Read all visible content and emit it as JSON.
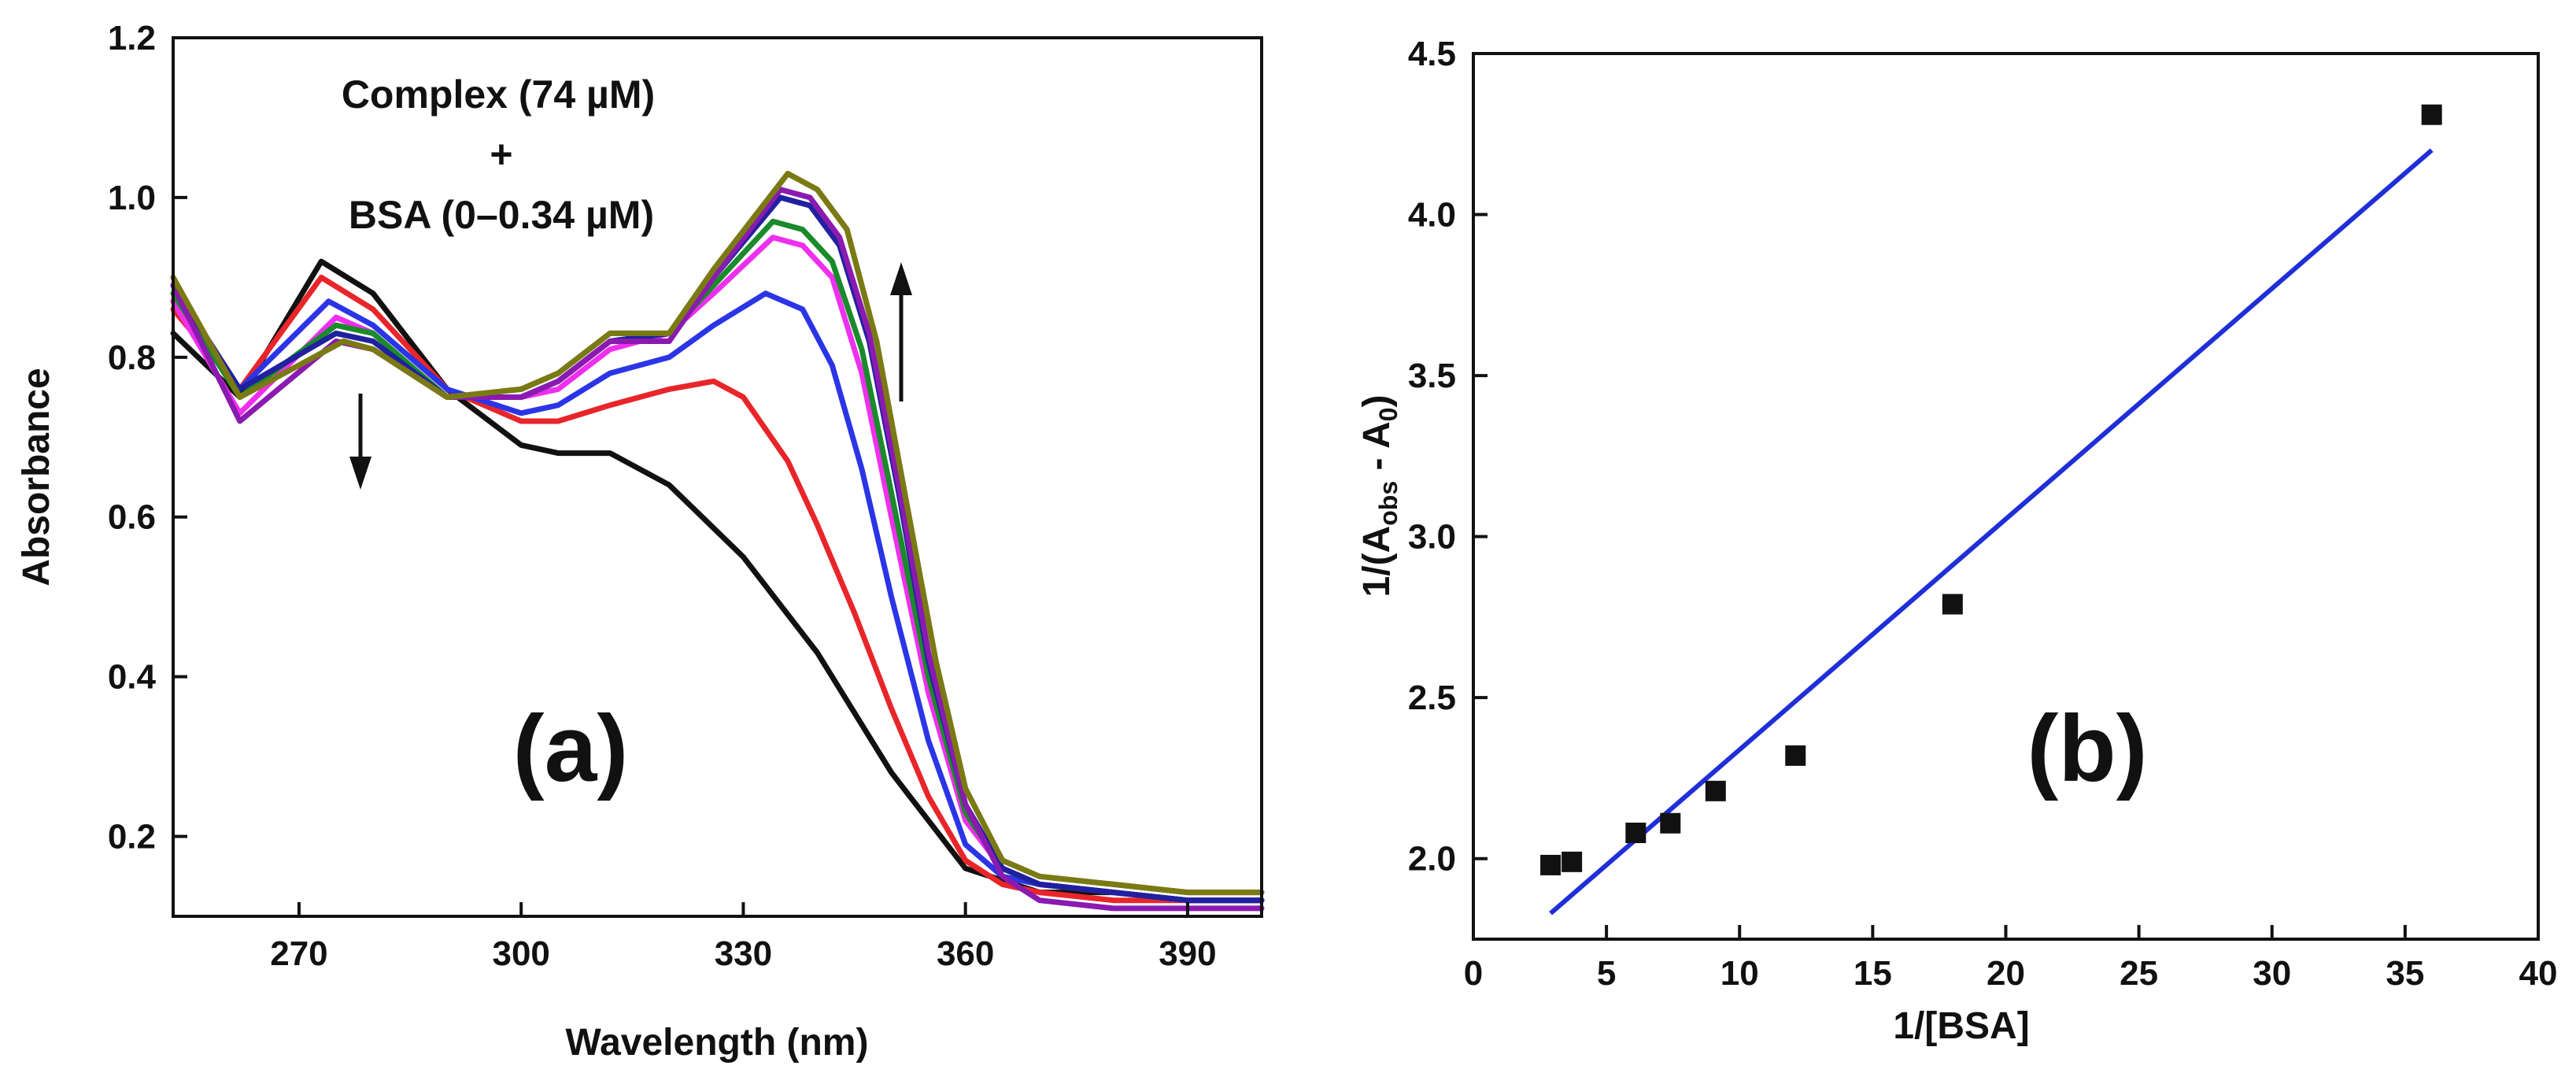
{
  "chart_data": [
    {
      "type": "line",
      "panel_label": "(a)",
      "xlabel": "Wavelength (nm)",
      "ylabel": "Absorbance",
      "xlim": [
        253,
        400
      ],
      "ylim": [
        0.1,
        1.2
      ],
      "xticks": [
        270,
        300,
        330,
        360,
        390
      ],
      "yticks": [
        0.2,
        0.4,
        0.6,
        0.8,
        1.0,
        1.2
      ],
      "annotation_lines": [
        "Complex (74 µM)",
        "+",
        "BSA (0–0.34 µM)"
      ],
      "arrows": [
        "down at ~274 nm",
        "up at ~350 nm"
      ],
      "grid": false,
      "series": [
        {
          "color": "#111111",
          "x": [
            253,
            262,
            273,
            280,
            290,
            300,
            305,
            312,
            320,
            330,
            340,
            350,
            360,
            370,
            380,
            390,
            400
          ],
          "y": [
            0.83,
            0.75,
            0.92,
            0.88,
            0.76,
            0.69,
            0.68,
            0.68,
            0.64,
            0.55,
            0.43,
            0.28,
            0.16,
            0.13,
            0.13,
            0.12,
            0.12
          ]
        },
        {
          "color": "#e8262a",
          "x": [
            253,
            262,
            273,
            280,
            290,
            300,
            305,
            312,
            320,
            326,
            330,
            336,
            340,
            345,
            350,
            355,
            360,
            365,
            370,
            380,
            390,
            400
          ],
          "y": [
            0.86,
            0.76,
            0.9,
            0.86,
            0.76,
            0.72,
            0.72,
            0.74,
            0.76,
            0.77,
            0.75,
            0.67,
            0.59,
            0.48,
            0.36,
            0.25,
            0.17,
            0.14,
            0.13,
            0.12,
            0.12,
            0.12
          ]
        },
        {
          "color": "#2b35e6",
          "x": [
            253,
            262,
            274,
            280,
            290,
            300,
            305,
            312,
            320,
            326,
            333,
            338,
            342,
            346,
            350,
            355,
            360,
            365,
            370,
            380,
            390,
            400
          ],
          "y": [
            0.87,
            0.76,
            0.87,
            0.84,
            0.76,
            0.73,
            0.74,
            0.78,
            0.8,
            0.84,
            0.88,
            0.86,
            0.79,
            0.66,
            0.5,
            0.32,
            0.19,
            0.15,
            0.14,
            0.13,
            0.12,
            0.12
          ]
        },
        {
          "color": "#ee30ee",
          "x": [
            253,
            262,
            275,
            280,
            290,
            300,
            305,
            312,
            320,
            326,
            334,
            338,
            342,
            346,
            350,
            355,
            360,
            365,
            370,
            380,
            390,
            400
          ],
          "y": [
            0.87,
            0.73,
            0.85,
            0.83,
            0.75,
            0.75,
            0.76,
            0.81,
            0.83,
            0.88,
            0.95,
            0.94,
            0.9,
            0.78,
            0.6,
            0.38,
            0.22,
            0.16,
            0.14,
            0.13,
            0.12,
            0.12
          ]
        },
        {
          "color": "#1a8a2a",
          "x": [
            253,
            262,
            275,
            280,
            290,
            300,
            305,
            312,
            320,
            326,
            334,
            338,
            342,
            346,
            350,
            355,
            360,
            365,
            370,
            380,
            390,
            400
          ],
          "y": [
            0.88,
            0.75,
            0.84,
            0.83,
            0.75,
            0.75,
            0.77,
            0.82,
            0.83,
            0.89,
            0.97,
            0.96,
            0.92,
            0.81,
            0.63,
            0.4,
            0.23,
            0.16,
            0.14,
            0.13,
            0.12,
            0.12
          ]
        },
        {
          "color": "#2020a0",
          "x": [
            253,
            262,
            275,
            280,
            290,
            300,
            305,
            312,
            320,
            326,
            335,
            339,
            343,
            347,
            351,
            355,
            360,
            365,
            370,
            380,
            390,
            400
          ],
          "y": [
            0.89,
            0.76,
            0.83,
            0.82,
            0.75,
            0.75,
            0.77,
            0.82,
            0.83,
            0.9,
            1.0,
            0.99,
            0.94,
            0.82,
            0.63,
            0.42,
            0.24,
            0.16,
            0.14,
            0.13,
            0.12,
            0.12
          ]
        },
        {
          "color": "#8a1ab0",
          "x": [
            253,
            262,
            275,
            280,
            290,
            300,
            305,
            312,
            320,
            326,
            335,
            339,
            343,
            347,
            351,
            355,
            360,
            365,
            370,
            380,
            390,
            400
          ],
          "y": [
            0.89,
            0.72,
            0.82,
            0.81,
            0.75,
            0.75,
            0.77,
            0.82,
            0.82,
            0.9,
            1.01,
            1.0,
            0.95,
            0.83,
            0.64,
            0.43,
            0.24,
            0.15,
            0.12,
            0.11,
            0.11,
            0.11
          ]
        },
        {
          "color": "#8a5a1a",
          "x": [
            253,
            262,
            276,
            280,
            290,
            300,
            305,
            312,
            320,
            326,
            336,
            340,
            344,
            348,
            352,
            356,
            360,
            365,
            370,
            380,
            390,
            400
          ],
          "y": [
            0.9,
            0.75,
            0.82,
            0.81,
            0.75,
            0.76,
            0.78,
            0.83,
            0.83,
            0.91,
            1.03,
            1.01,
            0.96,
            0.82,
            0.62,
            0.42,
            0.26,
            0.17,
            0.15,
            0.14,
            0.13,
            0.13
          ]
        },
        {
          "color": "#7a7a14",
          "x": [
            253,
            262,
            276,
            280,
            290,
            300,
            305,
            312,
            320,
            326,
            336,
            340,
            344,
            348,
            352,
            356,
            360,
            365,
            370,
            380,
            390,
            400
          ],
          "y": [
            0.9,
            0.75,
            0.82,
            0.81,
            0.75,
            0.76,
            0.78,
            0.83,
            0.83,
            0.91,
            1.03,
            1.01,
            0.96,
            0.82,
            0.62,
            0.42,
            0.26,
            0.17,
            0.15,
            0.14,
            0.13,
            0.13
          ]
        }
      ]
    },
    {
      "type": "scatter",
      "panel_label": "(b)",
      "xlabel": "1/[BSA]",
      "ylabel_main": "1/(A",
      "ylabel_sub_obs": "obs",
      "ylabel_mid": " - A",
      "ylabel_sub_0": "0",
      "ylabel_end": ")",
      "xlim": [
        0,
        40
      ],
      "ylim": [
        1.75,
        4.5
      ],
      "xticks": [
        0,
        5,
        10,
        15,
        20,
        25,
        30,
        35,
        40
      ],
      "yticks": [
        2.0,
        2.5,
        3.0,
        3.5,
        4.0,
        4.5
      ],
      "grid": false,
      "points": {
        "x": [
          2.9,
          3.7,
          6.1,
          7.4,
          9.1,
          12.1,
          18.0,
          36.0
        ],
        "y": [
          1.98,
          1.99,
          2.08,
          2.11,
          2.21,
          2.32,
          2.79,
          4.31
        ]
      },
      "fit_line": {
        "color": "#1f2fd8",
        "x": [
          2.9,
          36.0
        ],
        "y": [
          1.83,
          4.2
        ]
      }
    }
  ]
}
